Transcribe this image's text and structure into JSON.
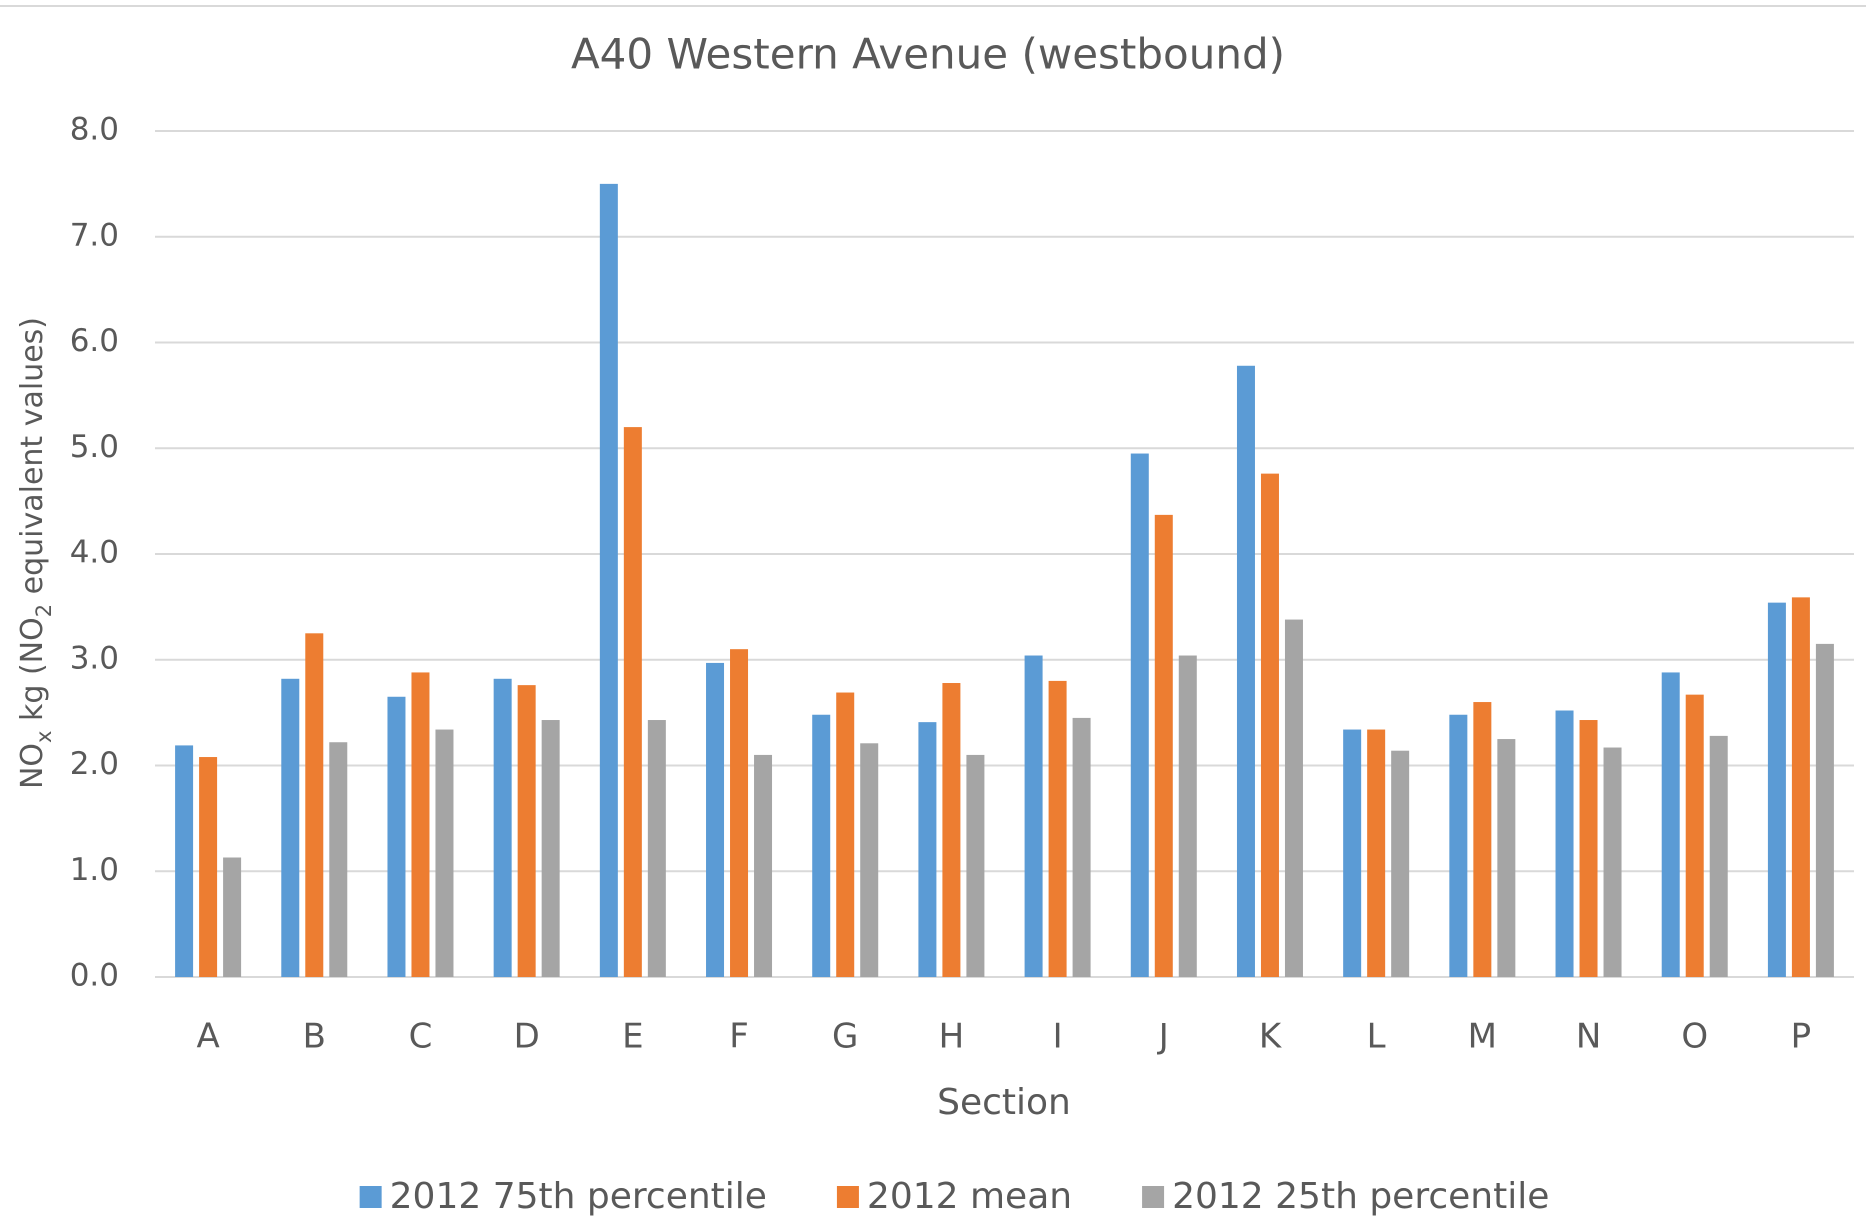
{
  "chart_data": {
    "type": "bar",
    "title": "A40 Western Avenue (westbound)",
    "xlabel": "Section",
    "ylabel": [
      "NO",
      "x",
      " kg (NO",
      "2",
      " equivalent  values)"
    ],
    "categories": [
      "A",
      "B",
      "C",
      "D",
      "E",
      "F",
      "G",
      "H",
      "I",
      "J",
      "K",
      "L",
      "M",
      "N",
      "O",
      "P"
    ],
    "series": [
      {
        "name": "2012 75th percentile",
        "color": "#5b9bd5",
        "values": [
          2.19,
          2.82,
          2.65,
          2.82,
          7.5,
          2.97,
          2.48,
          2.41,
          3.04,
          4.95,
          5.78,
          2.34,
          2.48,
          2.52,
          2.88,
          3.54
        ]
      },
      {
        "name": "2012 mean",
        "color": "#ed7d31",
        "values": [
          2.08,
          3.25,
          2.88,
          2.76,
          5.2,
          3.1,
          2.69,
          2.78,
          2.8,
          4.37,
          4.76,
          2.34,
          2.6,
          2.43,
          2.67,
          3.59
        ]
      },
      {
        "name": "2012 25th percentile",
        "color": "#a5a5a5",
        "values": [
          1.13,
          2.22,
          2.34,
          2.43,
          2.43,
          2.1,
          2.21,
          2.1,
          2.45,
          3.04,
          3.38,
          2.14,
          2.25,
          2.17,
          2.28,
          3.15
        ]
      }
    ],
    "ylim": [
      0,
      8
    ],
    "yticks": [
      {
        "value": 0,
        "label": "0.0"
      },
      {
        "value": 1,
        "label": "1.0"
      },
      {
        "value": 2,
        "label": "2.0"
      },
      {
        "value": 3,
        "label": "3.0"
      },
      {
        "value": 4,
        "label": "4.0"
      },
      {
        "value": 5,
        "label": "5.0"
      },
      {
        "value": 6,
        "label": "6.0"
      },
      {
        "value": 7,
        "label": "7.0"
      },
      {
        "value": 8,
        "label": "8.0"
      }
    ],
    "grid": true,
    "legend": "bottom"
  }
}
